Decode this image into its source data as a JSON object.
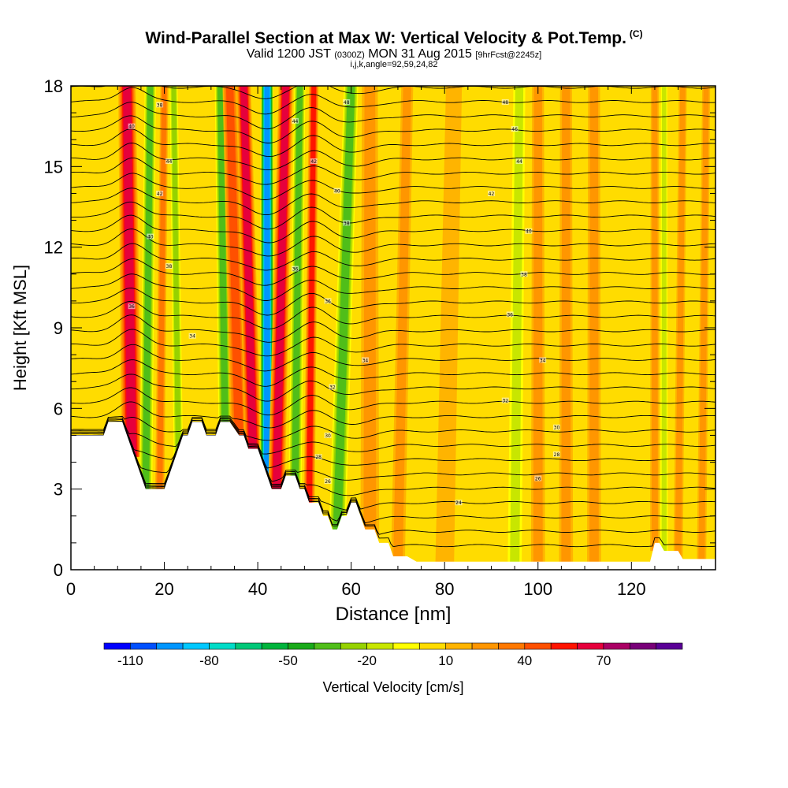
{
  "chart_data": {
    "type": "heatmap",
    "title": "Wind-Parallel Section at Max W: Vertical Velocity & Pot.Temp.",
    "title_mark": "(C)",
    "subtitle_main": "Valid 1200 JST",
    "subtitle_utc": "(0300Z)",
    "subtitle_date": "MON 31 Aug 2015",
    "subtitle_fcst": "[9hrFcst@2245z]",
    "subtitle2": "i,j,k,angle=92,59,24,82",
    "xlabel": "Distance [nm]",
    "ylabel": "Height [Kft MSL]",
    "colorbar_label": "Vertical Velocity [cm/s]",
    "xlim": [
      0,
      138
    ],
    "ylim": [
      0,
      18
    ],
    "xticks": [
      0,
      20,
      40,
      60,
      80,
      100,
      120
    ],
    "yticks": [
      0,
      3,
      6,
      9,
      12,
      15,
      18
    ],
    "colorbar_ticks": [
      -110,
      -80,
      -50,
      -20,
      10,
      40,
      70
    ],
    "colorbar_levels": [
      -120,
      -110,
      -100,
      -90,
      -80,
      -70,
      -60,
      -50,
      -40,
      -30,
      -20,
      -10,
      0,
      10,
      20,
      30,
      40,
      50,
      60,
      70,
      80,
      90
    ],
    "colorbar_colors": [
      "#0000ff",
      "#0050ff",
      "#0096ff",
      "#00c8ff",
      "#00dcc8",
      "#00c878",
      "#00b43c",
      "#19aa19",
      "#50be19",
      "#96d200",
      "#c8e600",
      "#ffff00",
      "#ffdc00",
      "#ffb400",
      "#ff9600",
      "#ff7800",
      "#ff5000",
      "#ff1400",
      "#e6003c",
      "#aa0064",
      "#780078",
      "#5a0096"
    ],
    "background_color": "#ffdc00",
    "terrain_profile": [
      [
        0,
        5
      ],
      [
        7,
        5
      ],
      [
        8,
        5.5
      ],
      [
        11,
        5.5
      ],
      [
        12,
        5
      ],
      [
        13,
        4.5
      ],
      [
        14,
        4
      ],
      [
        15,
        3.5
      ],
      [
        16,
        3
      ],
      [
        20,
        3
      ],
      [
        21,
        3.5
      ],
      [
        22,
        4
      ],
      [
        23,
        4.5
      ],
      [
        24,
        5
      ],
      [
        25,
        5
      ],
      [
        26,
        5.5
      ],
      [
        28,
        5.5
      ],
      [
        29,
        5
      ],
      [
        31,
        5
      ],
      [
        32,
        5.5
      ],
      [
        34,
        5.5
      ],
      [
        36,
        5
      ],
      [
        37,
        5
      ],
      [
        38,
        4.5
      ],
      [
        40,
        4.5
      ],
      [
        41,
        4
      ],
      [
        42,
        3.5
      ],
      [
        43,
        3
      ],
      [
        45,
        3
      ],
      [
        46,
        3.5
      ],
      [
        48,
        3.5
      ],
      [
        49,
        3
      ],
      [
        50,
        3
      ],
      [
        51,
        2.5
      ],
      [
        53,
        2.5
      ],
      [
        54,
        2
      ],
      [
        55,
        2
      ],
      [
        56,
        1.5
      ],
      [
        57,
        1.5
      ],
      [
        58,
        2
      ],
      [
        59,
        2
      ],
      [
        60,
        2.5
      ],
      [
        61,
        2.5
      ],
      [
        62,
        2
      ],
      [
        63,
        1.5
      ],
      [
        65,
        1.5
      ],
      [
        66,
        1
      ],
      [
        68,
        1
      ],
      [
        69,
        0.5
      ],
      [
        72,
        0.5
      ],
      [
        74,
        0.3
      ],
      [
        78,
        0.3
      ],
      [
        124,
        0.3
      ],
      [
        125,
        1
      ],
      [
        126,
        1
      ],
      [
        127,
        0.7
      ],
      [
        130,
        0.7
      ],
      [
        131,
        0.4
      ],
      [
        138,
        0.4
      ]
    ],
    "vertical_velocity_bands": [
      {
        "x_surface": 13,
        "x_top": 12,
        "width": 2.2,
        "value": 60
      },
      {
        "x_surface": 16,
        "x_top": 17,
        "width": 1.4,
        "value": -40
      },
      {
        "x_surface": 19,
        "x_top": 20,
        "width": 1.0,
        "value": 30
      },
      {
        "x_surface": 23,
        "x_top": 22,
        "width": 1.0,
        "value": -30
      },
      {
        "x_surface": 33,
        "x_top": 32,
        "width": 1.4,
        "value": -40
      },
      {
        "x_surface": 36,
        "x_top": 34,
        "width": 1.8,
        "value": 40
      },
      {
        "x_surface": 39,
        "x_top": 37,
        "width": 1.8,
        "value": 60
      },
      {
        "x_surface": 42,
        "x_top": 42,
        "width": 1.6,
        "value": -100
      },
      {
        "x_surface": 44,
        "x_top": 46,
        "width": 1.8,
        "value": 60
      },
      {
        "x_surface": 48,
        "x_top": 49,
        "width": 1.4,
        "value": -40
      },
      {
        "x_surface": 51,
        "x_top": 52,
        "width": 1.2,
        "value": 50
      },
      {
        "x_surface": 57,
        "x_top": 60,
        "width": 1.8,
        "value": -40
      },
      {
        "x_surface": 64,
        "x_top": 64,
        "width": 2.0,
        "value": 20
      },
      {
        "x_surface": 70,
        "x_top": 72,
        "width": 1.5,
        "value": 20
      },
      {
        "x_surface": 80,
        "x_top": 82,
        "width": 2.0,
        "value": 0
      },
      {
        "x_surface": 95,
        "x_top": 96,
        "width": 1.5,
        "value": -20
      },
      {
        "x_surface": 100,
        "x_top": 100,
        "width": 1.5,
        "value": 20
      },
      {
        "x_surface": 106,
        "x_top": 106,
        "width": 1.5,
        "value": 20
      },
      {
        "x_surface": 112,
        "x_top": 112,
        "width": 1.5,
        "value": 20
      },
      {
        "x_surface": 125,
        "x_top": 125,
        "width": 1.0,
        "value": 20
      },
      {
        "x_surface": 127,
        "x_top": 127,
        "width": 0.8,
        "value": -20
      },
      {
        "x_surface": 130,
        "x_top": 131,
        "width": 1.0,
        "value": 20
      },
      {
        "x_surface": 135,
        "x_top": 136,
        "width": 1.0,
        "value": 20
      }
    ],
    "theta_contour_count": 33,
    "theta_labels": [
      {
        "x": 13,
        "y": 16.5,
        "text": "40"
      },
      {
        "x": 19,
        "y": 17.3,
        "text": "38"
      },
      {
        "x": 21,
        "y": 15.2,
        "text": "44"
      },
      {
        "x": 19,
        "y": 14.0,
        "text": "42"
      },
      {
        "x": 17,
        "y": 12.4,
        "text": "40"
      },
      {
        "x": 21,
        "y": 11.3,
        "text": "38"
      },
      {
        "x": 13,
        "y": 9.8,
        "text": "36"
      },
      {
        "x": 26,
        "y": 8.7,
        "text": "34"
      },
      {
        "x": 48,
        "y": 16.7,
        "text": "44"
      },
      {
        "x": 52,
        "y": 15.2,
        "text": "42"
      },
      {
        "x": 57,
        "y": 14.1,
        "text": "40"
      },
      {
        "x": 59,
        "y": 12.9,
        "text": "38"
      },
      {
        "x": 48,
        "y": 11.2,
        "text": "36"
      },
      {
        "x": 55,
        "y": 10.0,
        "text": "36"
      },
      {
        "x": 63,
        "y": 7.8,
        "text": "34"
      },
      {
        "x": 56,
        "y": 6.8,
        "text": "32"
      },
      {
        "x": 55,
        "y": 5.0,
        "text": "30"
      },
      {
        "x": 53,
        "y": 4.2,
        "text": "28"
      },
      {
        "x": 55,
        "y": 3.3,
        "text": "26"
      },
      {
        "x": 59,
        "y": 17.4,
        "text": "48"
      },
      {
        "x": 93,
        "y": 17.4,
        "text": "48"
      },
      {
        "x": 95,
        "y": 16.4,
        "text": "46"
      },
      {
        "x": 96,
        "y": 15.2,
        "text": "44"
      },
      {
        "x": 90,
        "y": 14.0,
        "text": "42"
      },
      {
        "x": 98,
        "y": 12.6,
        "text": "40"
      },
      {
        "x": 97,
        "y": 11.0,
        "text": "38"
      },
      {
        "x": 94,
        "y": 9.5,
        "text": "36"
      },
      {
        "x": 101,
        "y": 7.8,
        "text": "34"
      },
      {
        "x": 93,
        "y": 6.3,
        "text": "32"
      },
      {
        "x": 104,
        "y": 5.3,
        "text": "30"
      },
      {
        "x": 104,
        "y": 4.3,
        "text": "28"
      },
      {
        "x": 100,
        "y": 3.4,
        "text": "26"
      },
      {
        "x": 83,
        "y": 2.5,
        "text": "24"
      }
    ]
  }
}
